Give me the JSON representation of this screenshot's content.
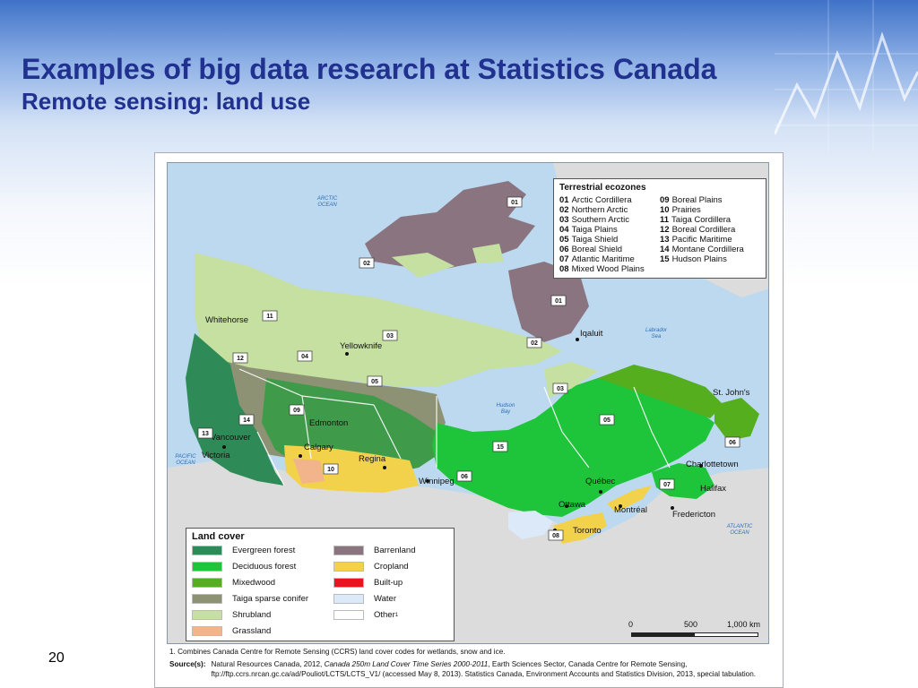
{
  "slide": {
    "title": "Examples of big data research at Statistics Canada",
    "subtitle": "Remote sensing: land use",
    "page_number": "20"
  },
  "map": {
    "oceans": [
      {
        "line1": "ARCTIC",
        "line2": "OCEAN"
      },
      {
        "line1": "Labrador",
        "line2": "Sea"
      },
      {
        "line1": "Hudson",
        "line2": "Bay"
      },
      {
        "line1": "PACIFIC",
        "line2": "OCEAN"
      },
      {
        "line1": "ATLANTIC",
        "line2": "OCEAN"
      }
    ],
    "cities": [
      "Whitehorse",
      "Yellowknife",
      "Iqaluit",
      "St. John's",
      "Edmonton",
      "Calgary",
      "Vancouver",
      "Victoria",
      "Regina",
      "Winnipeg",
      "Québec",
      "Charlottetown",
      "Halifax",
      "Ottawa",
      "Montréal",
      "Fredericton",
      "Toronto"
    ],
    "zone_labels": [
      "01",
      "02",
      "11",
      "03",
      "12",
      "04",
      "02",
      "01",
      "05",
      "03",
      "09",
      "14",
      "13",
      "10",
      "15",
      "05",
      "06",
      "06",
      "07",
      "08"
    ],
    "ecozones_legend": {
      "title": "Terrestrial ecozones",
      "items": [
        {
          "code": "01",
          "name": "Arctic Cordillera"
        },
        {
          "code": "09",
          "name": "Boreal Plains"
        },
        {
          "code": "02",
          "name": "Northern Arctic"
        },
        {
          "code": "10",
          "name": "Prairies"
        },
        {
          "code": "03",
          "name": "Southern Arctic"
        },
        {
          "code": "11",
          "name": "Taiga Cordillera"
        },
        {
          "code": "04",
          "name": "Taiga Plains"
        },
        {
          "code": "12",
          "name": "Boreal Cordillera"
        },
        {
          "code": "05",
          "name": "Taiga Shield"
        },
        {
          "code": "13",
          "name": "Pacific Maritime"
        },
        {
          "code": "06",
          "name": "Boreal Shield"
        },
        {
          "code": "14",
          "name": "Montane Cordillera"
        },
        {
          "code": "07",
          "name": "Atlantic Maritime"
        },
        {
          "code": "15",
          "name": "Hudson Plains"
        },
        {
          "code": "08",
          "name": "Mixed Wood Plains"
        }
      ]
    },
    "landcover_legend": {
      "title": "Land cover",
      "items": [
        {
          "label": "Evergreen forest",
          "color": "#2e8b57"
        },
        {
          "label": "Barrenland",
          "color": "#8a7480"
        },
        {
          "label": "Deciduous forest",
          "color": "#1ec43a"
        },
        {
          "label": "Cropland",
          "color": "#f3d24b"
        },
        {
          "label": "Mixedwood",
          "color": "#54ae1e"
        },
        {
          "label": "Built-up",
          "color": "#e8141e"
        },
        {
          "label": "Taiga sparse conifer",
          "color": "#8d9274"
        },
        {
          "label": "Water",
          "color": "#dce9f8"
        },
        {
          "label": "Shrubland",
          "color": "#c5e0a0"
        },
        {
          "label": "Other",
          "sup": "1",
          "color": "#ffffff"
        },
        {
          "label": "Grassland",
          "color": "#f1b48b"
        }
      ]
    },
    "scale": {
      "labels": [
        "0",
        "500",
        "1,000 km"
      ]
    }
  },
  "notes": {
    "footnote": "1. Combines Canada Centre for Remote Sensing (CCRS) land cover codes for wetlands, snow and ice.",
    "source_label": "Source(s):",
    "source_pre": "Natural Resources Canada, 2012,",
    "source_italic": "Canada 250m Land Cover Time Series 2000-2011",
    "source_post": ", Earth Sciences Sector, Canada Centre for Remote Sensing, ftp://ftp.ccrs.nrcan.gc.ca/ad/Pouliot/LCTS/LCTS_V1/ (accessed May 8, 2013). Statistics Canada, Environment Accounts and Statistics Division, 2013, special tabulation."
  }
}
